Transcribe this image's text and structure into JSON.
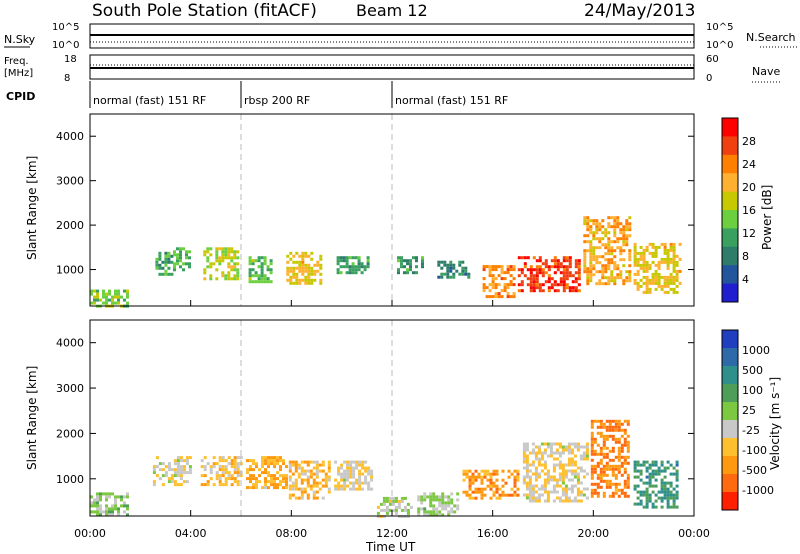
{
  "header": {
    "station": "South Pole Station (fitACF)",
    "beam": "Beam 12",
    "date": "24/May/2013"
  },
  "status_panels": {
    "left_labels": {
      "nsky": "N.Sky",
      "freq": "Freq.",
      "freq_unit": "[MHz]",
      "cpid": "CPID"
    },
    "right_labels": {
      "nsearch": "N.Search",
      "nave": "Nave"
    },
    "nsky_ticks": [
      "10^5",
      "10^0"
    ],
    "nsearch_ticks": [
      "10^5",
      "10^0"
    ],
    "freq_ticks": [
      "18",
      "8"
    ],
    "nave_ticks": [
      "60",
      "0"
    ],
    "cpid_segments": [
      {
        "label": "normal (fast) 151 RF",
        "start_hour": 0,
        "end_hour": 6
      },
      {
        "label": "rbsp 200 RF",
        "start_hour": 6,
        "end_hour": 12
      },
      {
        "label": "normal (fast) 151 RF",
        "start_hour": 12,
        "end_hour": 24
      }
    ]
  },
  "colorbars": {
    "power": {
      "label": "Power [dB]",
      "ticks": [
        "28",
        "24",
        "20",
        "16",
        "12",
        "8",
        "4"
      ],
      "colors": [
        "#ff0000",
        "#f04010",
        "#ff7f00",
        "#ffb030",
        "#c8c800",
        "#6ccf40",
        "#3aa060",
        "#2e7d6a",
        "#22559c",
        "#1f1fcf"
      ]
    },
    "velocity": {
      "label": "Velocity [m s⁻¹]",
      "ticks": [
        "1000",
        "500",
        "100",
        "25",
        "-25",
        "-100",
        "-500",
        "-1000"
      ],
      "colors": [
        "#1f3fbf",
        "#2e6aa8",
        "#2f8f8a",
        "#4e9e5a",
        "#7cc840",
        "#c8c8c8",
        "#ffc030",
        "#ff9a10",
        "#ff6a10",
        "#ff2000"
      ]
    }
  },
  "axes": {
    "ylabel": "Slant Range [km]",
    "xlabel": "Time UT",
    "yticks": [
      "1000",
      "2000",
      "3000",
      "4000"
    ],
    "xticks": [
      "00:00",
      "04:00",
      "08:00",
      "12:00",
      "16:00",
      "20:00",
      "00:00"
    ]
  },
  "chart_data": [
    {
      "type": "heatmap",
      "name": "Power",
      "x_unit": "hour UT",
      "y_unit": "km",
      "xlim": [
        0,
        24
      ],
      "ylim": [
        180,
        4500
      ],
      "value_range": [
        0,
        30
      ],
      "patches": [
        [
          0.0,
          1.5,
          180,
          550,
          14
        ],
        [
          2.6,
          3.2,
          900,
          1400,
          10
        ],
        [
          3.3,
          3.9,
          1000,
          1500,
          12
        ],
        [
          4.5,
          5.9,
          800,
          1500,
          16
        ],
        [
          6.3,
          7.2,
          700,
          1300,
          12
        ],
        [
          7.8,
          9.2,
          700,
          1400,
          18
        ],
        [
          9.8,
          11.0,
          900,
          1300,
          10
        ],
        [
          12.2,
          13.2,
          900,
          1300,
          10
        ],
        [
          13.8,
          15.0,
          800,
          1200,
          8
        ],
        [
          15.6,
          16.8,
          400,
          1100,
          22
        ],
        [
          17.0,
          19.5,
          500,
          1300,
          26
        ],
        [
          19.6,
          21.4,
          700,
          2200,
          20
        ],
        [
          21.6,
          23.4,
          500,
          1600,
          18
        ]
      ]
    },
    {
      "type": "heatmap",
      "name": "Velocity",
      "x_unit": "hour UT",
      "y_unit": "km",
      "xlim": [
        0,
        24
      ],
      "ylim": [
        180,
        4500
      ],
      "value_range": [
        -1000,
        1000
      ],
      "patches": [
        [
          0.0,
          1.5,
          180,
          700,
          50
        ],
        [
          2.5,
          4.0,
          900,
          1500,
          -150
        ],
        [
          4.4,
          6.0,
          900,
          1500,
          -300
        ],
        [
          6.2,
          7.8,
          800,
          1500,
          -400
        ],
        [
          7.9,
          9.5,
          600,
          1400,
          -300
        ],
        [
          9.7,
          11.2,
          800,
          1400,
          -200
        ],
        [
          11.4,
          12.8,
          180,
          600,
          -60
        ],
        [
          13.0,
          14.6,
          180,
          700,
          0
        ],
        [
          14.8,
          17.0,
          600,
          1200,
          -500
        ],
        [
          17.2,
          19.8,
          500,
          1800,
          -200
        ],
        [
          19.9,
          21.4,
          600,
          2300,
          -600
        ],
        [
          21.6,
          23.3,
          400,
          1400,
          400
        ]
      ]
    }
  ]
}
